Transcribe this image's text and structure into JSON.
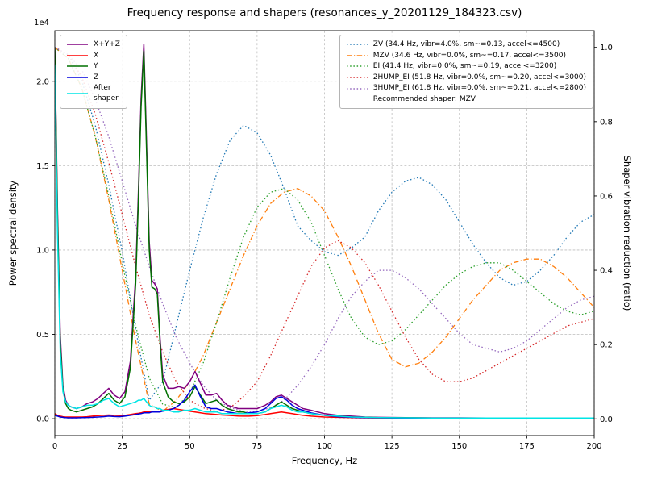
{
  "chart_data": {
    "type": "line",
    "title": "Frequency response and shapers (resonances_y_20201129_184323.csv)",
    "xlabel": "Frequency, Hz",
    "ylabel_left": "Power spectral density",
    "ylabel_right": "Shaper vibration reduction (ratio)",
    "y_left_offset_text": "1e4",
    "x_range": [
      0,
      200
    ],
    "y_left_range_1e4": [
      0,
      2.3
    ],
    "y_right_range": [
      0,
      1.0
    ],
    "x_ticks": [
      0,
      25,
      50,
      75,
      100,
      125,
      150,
      175,
      200
    ],
    "y_left_ticks": [
      "0.0",
      "0.5",
      "1.0",
      "1.5",
      "2.0"
    ],
    "y_right_ticks": [
      "0.0",
      "0.2",
      "0.4",
      "0.6",
      "0.8",
      "1.0"
    ],
    "grid": true,
    "recommended": "Recommended shaper: MZV",
    "psd_x": [
      0,
      1,
      2,
      3,
      4,
      5,
      6,
      8,
      10,
      12,
      14,
      16,
      18,
      20,
      22,
      24,
      26,
      28,
      30,
      31,
      32,
      33,
      34,
      35,
      36,
      37,
      38,
      39,
      40,
      42,
      44,
      46,
      48,
      50,
      52,
      54,
      56,
      58,
      60,
      62,
      64,
      66,
      68,
      70,
      72,
      75,
      78,
      80,
      82,
      84,
      86,
      88,
      90,
      92,
      95,
      100,
      105,
      110,
      115,
      120,
      130,
      140,
      150,
      160,
      170,
      180,
      190,
      200
    ],
    "psd_series": [
      {
        "name": "x-y-z",
        "label": "X+Y+Z",
        "color": "#800080",
        "values_1e4": [
          2.2,
          1.25,
          0.5,
          0.2,
          0.11,
          0.08,
          0.07,
          0.06,
          0.07,
          0.09,
          0.1,
          0.12,
          0.15,
          0.18,
          0.14,
          0.12,
          0.16,
          0.34,
          0.85,
          1.35,
          1.9,
          2.22,
          1.65,
          1.05,
          0.82,
          0.8,
          0.77,
          0.48,
          0.26,
          0.18,
          0.18,
          0.19,
          0.18,
          0.22,
          0.28,
          0.21,
          0.14,
          0.14,
          0.15,
          0.11,
          0.08,
          0.07,
          0.06,
          0.06,
          0.06,
          0.06,
          0.08,
          0.1,
          0.13,
          0.14,
          0.12,
          0.1,
          0.08,
          0.06,
          0.05,
          0.03,
          0.02,
          0.015,
          0.01,
          0.008,
          0.006,
          0.005,
          0.005,
          0.004,
          0.004,
          0.004,
          0.004,
          0.004
        ]
      },
      {
        "name": "x",
        "label": "X",
        "color": "#ff0000",
        "values_1e4": [
          0.03,
          0.02,
          0.015,
          0.012,
          0.01,
          0.01,
          0.01,
          0.01,
          0.01,
          0.012,
          0.015,
          0.018,
          0.02,
          0.022,
          0.02,
          0.018,
          0.02,
          0.025,
          0.03,
          0.032,
          0.035,
          0.04,
          0.04,
          0.04,
          0.042,
          0.045,
          0.045,
          0.045,
          0.05,
          0.055,
          0.06,
          0.055,
          0.05,
          0.045,
          0.04,
          0.035,
          0.03,
          0.028,
          0.025,
          0.022,
          0.02,
          0.018,
          0.016,
          0.015,
          0.015,
          0.018,
          0.025,
          0.03,
          0.035,
          0.04,
          0.035,
          0.03,
          0.025,
          0.02,
          0.015,
          0.01,
          0.008,
          0.006,
          0.005,
          0.004,
          0.003,
          0.003,
          0.002,
          0.002,
          0.002,
          0.002,
          0.002,
          0.002
        ]
      },
      {
        "name": "y",
        "label": "Y",
        "color": "#007000",
        "values_1e4": [
          2.2,
          1.2,
          0.45,
          0.18,
          0.09,
          0.06,
          0.05,
          0.04,
          0.05,
          0.06,
          0.07,
          0.09,
          0.12,
          0.15,
          0.11,
          0.09,
          0.13,
          0.3,
          0.8,
          1.3,
          1.85,
          2.18,
          1.6,
          1.0,
          0.78,
          0.77,
          0.74,
          0.45,
          0.22,
          0.13,
          0.1,
          0.09,
          0.1,
          0.13,
          0.19,
          0.14,
          0.09,
          0.1,
          0.11,
          0.08,
          0.06,
          0.05,
          0.04,
          0.04,
          0.03,
          0.03,
          0.04,
          0.06,
          0.08,
          0.1,
          0.08,
          0.06,
          0.05,
          0.04,
          0.03,
          0.02,
          0.015,
          0.01,
          0.008,
          0.006,
          0.005,
          0.004,
          0.004,
          0.003,
          0.003,
          0.003,
          0.003,
          0.003
        ]
      },
      {
        "name": "z",
        "label": "Z",
        "color": "#0000dd",
        "values_1e4": [
          0.02,
          0.015,
          0.01,
          0.008,
          0.006,
          0.005,
          0.005,
          0.005,
          0.006,
          0.007,
          0.008,
          0.01,
          0.012,
          0.015,
          0.013,
          0.012,
          0.015,
          0.02,
          0.025,
          0.028,
          0.03,
          0.035,
          0.035,
          0.035,
          0.04,
          0.04,
          0.04,
          0.04,
          0.045,
          0.05,
          0.06,
          0.08,
          0.11,
          0.16,
          0.2,
          0.13,
          0.07,
          0.06,
          0.06,
          0.05,
          0.04,
          0.035,
          0.03,
          0.03,
          0.035,
          0.04,
          0.06,
          0.09,
          0.12,
          0.13,
          0.11,
          0.08,
          0.06,
          0.05,
          0.035,
          0.02,
          0.012,
          0.008,
          0.006,
          0.005,
          0.004,
          0.003,
          0.003,
          0.002,
          0.002,
          0.002,
          0.002,
          0.002
        ]
      },
      {
        "name": "after-shaper",
        "label": "After\nshaper",
        "color": "#00e5e5",
        "values_1e4": [
          2.1,
          1.1,
          0.4,
          0.16,
          0.1,
          0.08,
          0.07,
          0.06,
          0.07,
          0.08,
          0.08,
          0.09,
          0.11,
          0.12,
          0.09,
          0.07,
          0.08,
          0.09,
          0.1,
          0.11,
          0.11,
          0.12,
          0.1,
          0.08,
          0.07,
          0.07,
          0.06,
          0.06,
          0.05,
          0.05,
          0.04,
          0.04,
          0.05,
          0.05,
          0.06,
          0.05,
          0.04,
          0.04,
          0.04,
          0.03,
          0.03,
          0.03,
          0.03,
          0.03,
          0.03,
          0.03,
          0.04,
          0.06,
          0.07,
          0.08,
          0.07,
          0.05,
          0.04,
          0.04,
          0.03,
          0.02,
          0.015,
          0.01,
          0.008,
          0.006,
          0.005,
          0.004,
          0.004,
          0.004,
          0.004,
          0.004,
          0.004,
          0.004
        ]
      }
    ],
    "shaper_x": [
      0,
      5,
      10,
      15,
      20,
      25,
      30,
      35,
      40,
      45,
      50,
      55,
      60,
      65,
      70,
      75,
      80,
      85,
      90,
      95,
      100,
      105,
      110,
      115,
      120,
      125,
      130,
      135,
      140,
      145,
      150,
      155,
      160,
      165,
      170,
      175,
      180,
      185,
      190,
      195,
      200
    ],
    "shaper_series": [
      {
        "name": "zv",
        "label": "ZV (34.4 Hz, vibr=4.0%, sm~=0.13, accel<=4500)",
        "color": "#1f77b4",
        "dash": "dotted",
        "values": [
          1.0,
          0.98,
          0.91,
          0.79,
          0.63,
          0.45,
          0.24,
          0.05,
          0.1,
          0.25,
          0.4,
          0.54,
          0.66,
          0.75,
          0.79,
          0.77,
          0.71,
          0.62,
          0.52,
          0.48,
          0.45,
          0.44,
          0.46,
          0.49,
          0.56,
          0.61,
          0.64,
          0.65,
          0.63,
          0.59,
          0.53,
          0.47,
          0.42,
          0.38,
          0.36,
          0.37,
          0.4,
          0.44,
          0.49,
          0.53,
          0.55
        ]
      },
      {
        "name": "mzv",
        "label": "MZV (34.6 Hz, vibr=0.0%, sm~=0.17, accel<=3500)",
        "color": "#ff7f0e",
        "dash": "dashdot",
        "values": [
          1.0,
          0.97,
          0.89,
          0.76,
          0.59,
          0.4,
          0.21,
          0.04,
          0.02,
          0.05,
          0.1,
          0.17,
          0.26,
          0.35,
          0.44,
          0.52,
          0.58,
          0.61,
          0.62,
          0.6,
          0.56,
          0.49,
          0.41,
          0.32,
          0.23,
          0.16,
          0.14,
          0.15,
          0.18,
          0.22,
          0.27,
          0.32,
          0.36,
          0.4,
          0.42,
          0.43,
          0.43,
          0.41,
          0.38,
          0.34,
          0.3
        ]
      },
      {
        "name": "ei",
        "label": "EI (41.4 Hz, vibr=0.0%, sm~=0.19, accel<=3200)",
        "color": "#2ca02c",
        "dash": "dotted",
        "values": [
          1.0,
          0.97,
          0.89,
          0.76,
          0.6,
          0.42,
          0.25,
          0.11,
          0.04,
          0.03,
          0.07,
          0.15,
          0.26,
          0.38,
          0.49,
          0.57,
          0.61,
          0.62,
          0.59,
          0.53,
          0.44,
          0.35,
          0.27,
          0.22,
          0.2,
          0.21,
          0.24,
          0.28,
          0.32,
          0.36,
          0.39,
          0.41,
          0.42,
          0.42,
          0.4,
          0.37,
          0.34,
          0.31,
          0.29,
          0.28,
          0.29
        ]
      },
      {
        "name": "2hump-ei",
        "label": "2HUMP_EI (51.8 Hz, vibr=0.0%, sm~=0.20, accel<=3000)",
        "color": "#d62728",
        "dash": "dotted",
        "values": [
          1.0,
          0.98,
          0.92,
          0.82,
          0.69,
          0.55,
          0.41,
          0.28,
          0.18,
          0.1,
          0.05,
          0.03,
          0.02,
          0.03,
          0.06,
          0.1,
          0.17,
          0.25,
          0.33,
          0.41,
          0.46,
          0.48,
          0.46,
          0.42,
          0.36,
          0.29,
          0.22,
          0.16,
          0.12,
          0.1,
          0.1,
          0.11,
          0.13,
          0.15,
          0.17,
          0.19,
          0.21,
          0.23,
          0.25,
          0.26,
          0.27
        ]
      },
      {
        "name": "3hump-ei",
        "label": "3HUMP_EI (61.8 Hz, vibr=0.0%, sm~=0.21, accel<=2800)",
        "color": "#9467bd",
        "dash": "dotted",
        "values": [
          1.0,
          0.98,
          0.94,
          0.86,
          0.76,
          0.64,
          0.52,
          0.41,
          0.31,
          0.22,
          0.15,
          0.09,
          0.05,
          0.03,
          0.02,
          0.02,
          0.03,
          0.05,
          0.09,
          0.14,
          0.2,
          0.27,
          0.33,
          0.37,
          0.4,
          0.4,
          0.38,
          0.35,
          0.31,
          0.27,
          0.23,
          0.2,
          0.19,
          0.18,
          0.19,
          0.21,
          0.24,
          0.27,
          0.3,
          0.32,
          0.33
        ]
      }
    ]
  }
}
